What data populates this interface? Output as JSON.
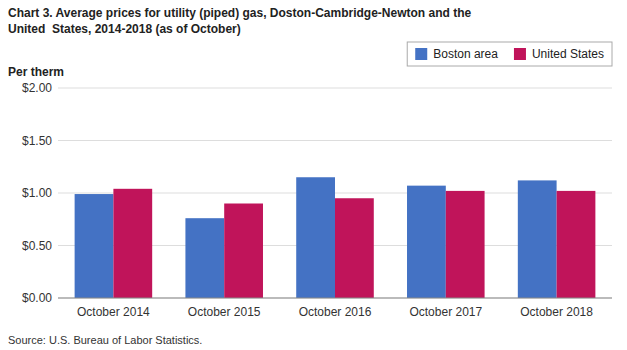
{
  "chart_data": {
    "type": "bar",
    "title": "Chart 3. Average prices for utility (piped) gas, Doston-Cambridge-Newton and the",
    "subtitle": "United  States, 2014-2018 (as of October)",
    "ylabel": "Per therm",
    "source": "Source: U.S. Bureau of Labor Statistics.",
    "categories": [
      "October 2014",
      "October 2015",
      "October 2016",
      "October 2017",
      "October 2018"
    ],
    "series": [
      {
        "name": "Boston area",
        "color": "#4472C4",
        "values": [
          0.99,
          0.76,
          1.15,
          1.07,
          1.12
        ]
      },
      {
        "name": "United States",
        "color": "#C0145A",
        "values": [
          1.04,
          0.9,
          0.95,
          1.02,
          1.02
        ]
      }
    ],
    "ylim": [
      0,
      2.0
    ],
    "yticks": [
      {
        "value": 0.0,
        "label": "$0.00"
      },
      {
        "value": 0.5,
        "label": "$0.50"
      },
      {
        "value": 1.0,
        "label": "$1.00"
      },
      {
        "value": 1.5,
        "label": "$1.50"
      },
      {
        "value": 2.0,
        "label": "$2.00"
      }
    ],
    "grid": true,
    "legend": "upper right"
  }
}
